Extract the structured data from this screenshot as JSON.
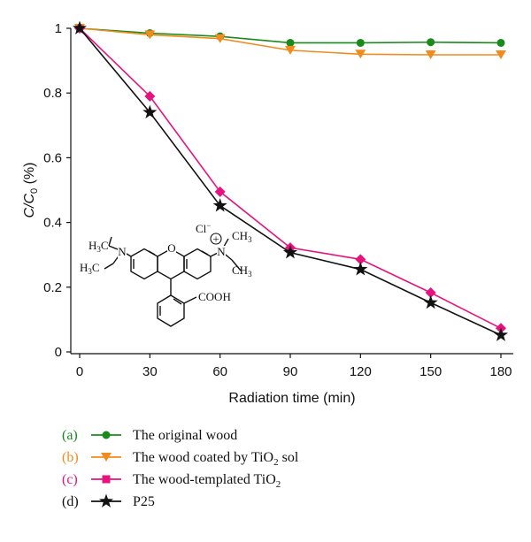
{
  "chart_data": {
    "type": "line",
    "xlabel": "Radiation time (min)",
    "ylabel_main": "C/C",
    "ylabel_sub": "0",
    "ylabel_unit": " (%)",
    "xlim": [
      0,
      180
    ],
    "ylim": [
      0,
      1
    ],
    "xticks": [
      "0",
      "30",
      "60",
      "90",
      "120",
      "150",
      "180"
    ],
    "yticks": [
      "0",
      "0.2",
      "0.4",
      "0.6",
      "0.8",
      "1"
    ],
    "grid": false,
    "legend_position": "bottom",
    "x": [
      0,
      30,
      60,
      90,
      120,
      150,
      180
    ],
    "series": [
      {
        "tag": "(a)",
        "name": "The original wood",
        "color": "#1a8a1a",
        "marker": "circle",
        "values": [
          1.0,
          0.985,
          0.975,
          0.955,
          0.955,
          0.957,
          0.955
        ]
      },
      {
        "tag": "(b)",
        "name_pre": "The wood coated by TiO",
        "name_sub": "2",
        "name_post": " sol",
        "color": "#f08c1e",
        "marker": "triangle-down",
        "values": [
          1.0,
          0.98,
          0.968,
          0.932,
          0.92,
          0.918,
          0.918
        ]
      },
      {
        "tag": "(c)",
        "name_pre": "The wood-templated TiO",
        "name_sub": "2",
        "color": "#e6127d",
        "marker": "diamond",
        "legend_marker": "square",
        "values": [
          1.0,
          0.79,
          0.495,
          0.322,
          0.286,
          0.183,
          0.073
        ]
      },
      {
        "tag": "(d)",
        "name": "P25",
        "color": "#111111",
        "marker": "star",
        "values": [
          1.0,
          0.74,
          0.452,
          0.307,
          0.255,
          0.152,
          0.052
        ]
      }
    ]
  },
  "molecule": {
    "left_top": "H",
    "left_top_sub": "3",
    "left_top_c": "C",
    "left_bottom": "H",
    "left_bottom_sub": "3",
    "left_bottom_c": "C",
    "n_left": "N",
    "o_ring": "O",
    "n_right": "N",
    "plus": "+",
    "chloride": "Cl",
    "chloride_charge": "−",
    "right_top": "CH",
    "right_top_sub": "3",
    "right_bottom": "CH",
    "right_bottom_sub": "3",
    "cooh": "COOH"
  }
}
